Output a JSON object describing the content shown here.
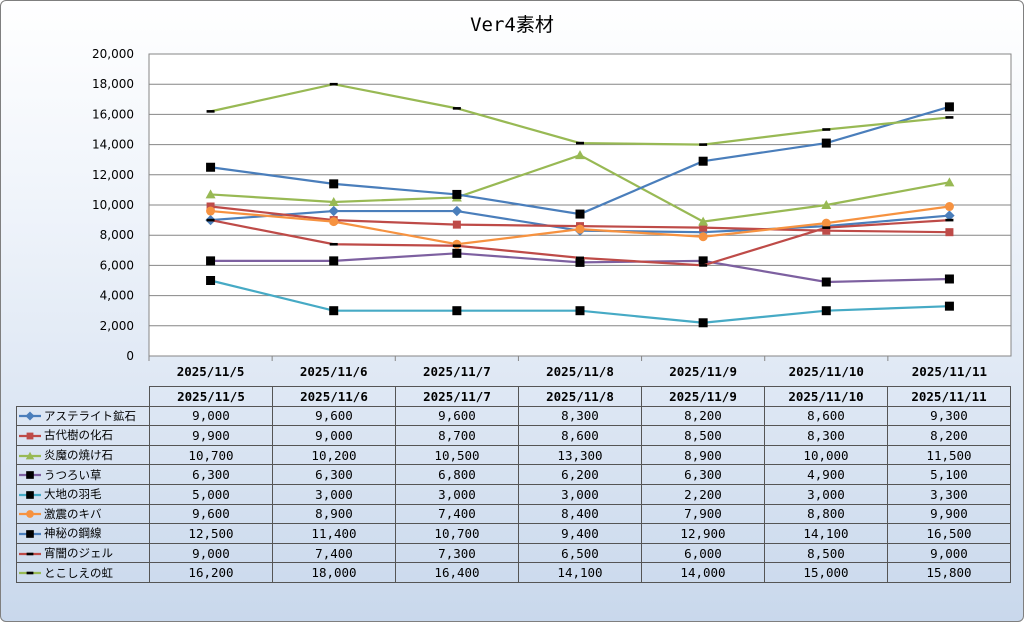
{
  "chart_data": {
    "type": "line",
    "title": "Ver4素材",
    "categories": [
      "2025/11/5",
      "2025/11/6",
      "2025/11/7",
      "2025/11/8",
      "2025/11/9",
      "2025/11/10",
      "2025/11/11"
    ],
    "ylim": [
      0,
      20000
    ],
    "yticks": [
      "0",
      "2,000",
      "4,000",
      "6,000",
      "8,000",
      "10,000",
      "12,000",
      "14,000",
      "16,000",
      "18,000",
      "20,000"
    ],
    "grid": true,
    "legend_position": "data-table",
    "series": [
      {
        "name": "アステライト鉱石",
        "color": "#4a7ebb",
        "marker": "diamond",
        "values": [
          9000,
          9600,
          9600,
          8300,
          8200,
          8600,
          9300
        ],
        "labels": [
          "9,000",
          "9,600",
          "9,600",
          "8,300",
          "8,200",
          "8,600",
          "9,300"
        ]
      },
      {
        "name": "古代樹の化石",
        "color": "#be4b48",
        "marker": "square",
        "values": [
          9900,
          9000,
          8700,
          8600,
          8500,
          8300,
          8200
        ],
        "labels": [
          "9,900",
          "9,000",
          "8,700",
          "8,600",
          "8,500",
          "8,300",
          "8,200"
        ]
      },
      {
        "name": "炎魔の焼け石",
        "color": "#98b954",
        "marker": "triangle",
        "values": [
          10700,
          10200,
          10500,
          13300,
          8900,
          10000,
          11500
        ],
        "labels": [
          "10,700",
          "10,200",
          "10,500",
          "13,300",
          "8,900",
          "10,000",
          "11,500"
        ]
      },
      {
        "name": "うつろい草",
        "color": "#7d60a0",
        "marker": "square-black",
        "values": [
          6300,
          6300,
          6800,
          6200,
          6300,
          4900,
          5100
        ],
        "labels": [
          "6,300",
          "6,300",
          "6,800",
          "6,200",
          "6,300",
          "4,900",
          "5,100"
        ]
      },
      {
        "name": "大地の羽毛",
        "color": "#46aac5",
        "marker": "square-black",
        "values": [
          5000,
          3000,
          3000,
          3000,
          2200,
          3000,
          3300
        ],
        "labels": [
          "5,000",
          "3,000",
          "3,000",
          "3,000",
          "2,200",
          "3,000",
          "3,300"
        ]
      },
      {
        "name": "激震のキバ",
        "color": "#f69240",
        "marker": "circle",
        "values": [
          9600,
          8900,
          7400,
          8400,
          7900,
          8800,
          9900
        ],
        "labels": [
          "9,600",
          "8,900",
          "7,400",
          "8,400",
          "7,900",
          "8,800",
          "9,900"
        ]
      },
      {
        "name": "神秘の鋼線",
        "color": "#4a7ebb",
        "marker": "square-black",
        "values": [
          12500,
          11400,
          10700,
          9400,
          12900,
          14100,
          16500
        ],
        "labels": [
          "12,500",
          "11,400",
          "10,700",
          "9,400",
          "12,900",
          "14,100",
          "16,500"
        ]
      },
      {
        "name": "宵闇のジェル",
        "color": "#be4b48",
        "marker": "dash",
        "values": [
          9000,
          7400,
          7300,
          6500,
          6000,
          8500,
          9000
        ],
        "labels": [
          "9,000",
          "7,400",
          "7,300",
          "6,500",
          "6,000",
          "8,500",
          "9,000"
        ]
      },
      {
        "name": "とこしえの虹",
        "color": "#98b954",
        "marker": "dash",
        "values": [
          16200,
          18000,
          16400,
          14100,
          14000,
          15000,
          15800
        ],
        "labels": [
          "16,200",
          "18,000",
          "16,400",
          "14,100",
          "14,000",
          "15,000",
          "15,800"
        ]
      }
    ]
  }
}
